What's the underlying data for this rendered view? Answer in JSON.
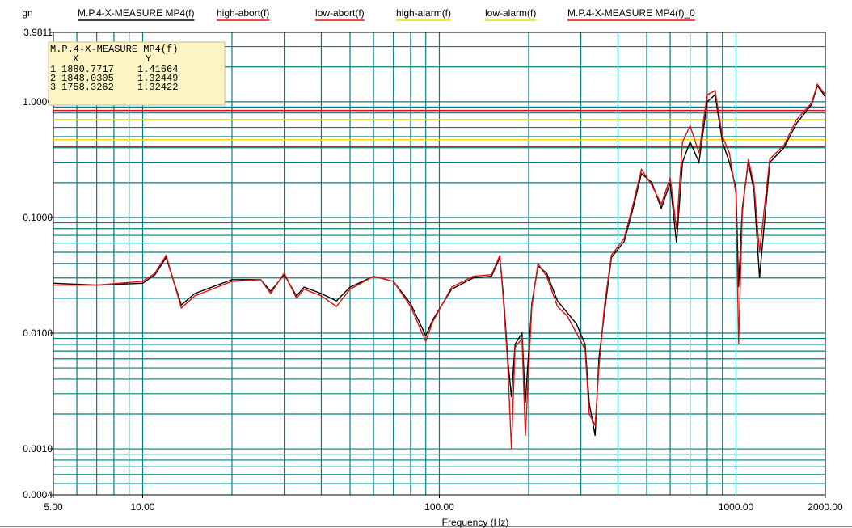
{
  "chart_data": {
    "type": "line",
    "y_unit": "gn",
    "xlabel": "Frequency (Hz)",
    "log_x": true,
    "log_y": true,
    "xlim": [
      5,
      2000
    ],
    "ylim": [
      0.0004,
      3.9811
    ],
    "xticks": [
      {
        "value": 5,
        "label": "5.00"
      },
      {
        "value": 10,
        "label": "10.00"
      },
      {
        "value": 100,
        "label": "100.00"
      },
      {
        "value": 1000,
        "label": "1000.00"
      },
      {
        "value": 2000,
        "label": "2000.00"
      }
    ],
    "yticks": [
      {
        "value": 0.0004,
        "label": "0.0004"
      },
      {
        "value": 0.001,
        "label": "0.0010"
      },
      {
        "value": 0.01,
        "label": "0.0100"
      },
      {
        "value": 0.1,
        "label": "0.1000"
      },
      {
        "value": 1,
        "label": "1.0000"
      },
      {
        "value": 3.9811,
        "label": "3.9811"
      }
    ],
    "grid": true,
    "grid_color": "#008080",
    "xgrid": [
      6,
      7,
      8,
      9,
      10,
      20,
      30,
      40,
      50,
      60,
      70,
      80,
      90,
      100,
      200,
      300,
      400,
      500,
      600,
      700,
      800,
      900,
      1000
    ],
    "ygrid": [
      0.0005,
      0.0006,
      0.0007,
      0.0008,
      0.0009,
      0.001,
      0.002,
      0.003,
      0.004,
      0.005,
      0.006,
      0.007,
      0.008,
      0.009,
      0.01,
      0.02,
      0.03,
      0.04,
      0.05,
      0.06,
      0.07,
      0.08,
      0.09,
      0.1,
      0.2,
      0.3,
      0.4,
      0.5,
      0.6,
      0.7,
      0.8,
      0.9,
      1,
      2,
      3
    ],
    "x": [
      5,
      7,
      10,
      11,
      12,
      13.5,
      15,
      20,
      25,
      27,
      30,
      33,
      35,
      40,
      45,
      50,
      60,
      70,
      80,
      90,
      95,
      110,
      130,
      150,
      160,
      165,
      170,
      175,
      180,
      190,
      195,
      205,
      215,
      230,
      250,
      270,
      290,
      310,
      320,
      335,
      345,
      360,
      380,
      420,
      450,
      480,
      520,
      560,
      600,
      630,
      660,
      700,
      750,
      800,
      850,
      900,
      950,
      1000,
      1020,
      1050,
      1100,
      1150,
      1200,
      1300,
      1450,
      1600,
      1800,
      1880,
      2000
    ],
    "series": [
      {
        "name": "M.P.4-X-MEASURE MP4(f)",
        "color": "#000000",
        "values": [
          0.027,
          0.026,
          0.027,
          0.032,
          0.045,
          0.0175,
          0.022,
          0.029,
          0.029,
          0.023,
          0.032,
          0.021,
          0.025,
          0.022,
          0.019,
          0.025,
          0.031,
          0.028,
          0.018,
          0.0095,
          0.013,
          0.024,
          0.03,
          0.031,
          0.045,
          0.019,
          0.006,
          0.0028,
          0.008,
          0.01,
          0.0025,
          0.018,
          0.038,
          0.033,
          0.019,
          0.015,
          0.012,
          0.008,
          0.0025,
          0.0013,
          0.006,
          0.015,
          0.045,
          0.062,
          0.12,
          0.24,
          0.2,
          0.12,
          0.2,
          0.06,
          0.3,
          0.45,
          0.3,
          1.0,
          1.15,
          0.45,
          0.3,
          0.18,
          0.025,
          0.12,
          0.3,
          0.17,
          0.03,
          0.3,
          0.4,
          0.65,
          0.95,
          1.38,
          1.1
        ]
      },
      {
        "name": "M.P.4-X-MEASURE MP4(f)_0",
        "color": "#e01010",
        "values": [
          0.026,
          0.026,
          0.028,
          0.033,
          0.047,
          0.0165,
          0.021,
          0.028,
          0.029,
          0.022,
          0.033,
          0.02,
          0.024,
          0.021,
          0.017,
          0.024,
          0.031,
          0.028,
          0.017,
          0.0085,
          0.0125,
          0.025,
          0.031,
          0.032,
          0.047,
          0.017,
          0.0054,
          0.001,
          0.0075,
          0.009,
          0.0013,
          0.017,
          0.04,
          0.031,
          0.017,
          0.014,
          0.01,
          0.0072,
          0.002,
          0.0016,
          0.005,
          0.017,
          0.047,
          0.066,
          0.13,
          0.26,
          0.19,
          0.13,
          0.22,
          0.08,
          0.45,
          0.62,
          0.36,
          1.15,
          1.25,
          0.5,
          0.36,
          0.16,
          0.008,
          0.11,
          0.32,
          0.19,
          0.05,
          0.32,
          0.42,
          0.7,
          0.98,
          1.42,
          1.15
        ]
      }
    ],
    "reference_lines": [
      {
        "name": "high-abort(f)",
        "color": "#e01010",
        "value": 0.84
      },
      {
        "name": "low-abort(f)",
        "color": "#e01010",
        "value": 0.41
      },
      {
        "name": "high-alarm(f)",
        "color": "#e8e000",
        "value": 0.7
      },
      {
        "name": "low-alarm(f)",
        "color": "#e8e000",
        "value": 0.47
      }
    ],
    "cursor_table": {
      "title": "M.P.4-X-MEASURE MP4(f)",
      "columns": [
        "X",
        "Y"
      ],
      "rows": [
        [
          "1",
          "1880.7717",
          "1.41664"
        ],
        [
          "2",
          "1848.0305",
          "1.32449"
        ],
        [
          "3",
          "1758.3262",
          "1.32422"
        ]
      ]
    }
  }
}
